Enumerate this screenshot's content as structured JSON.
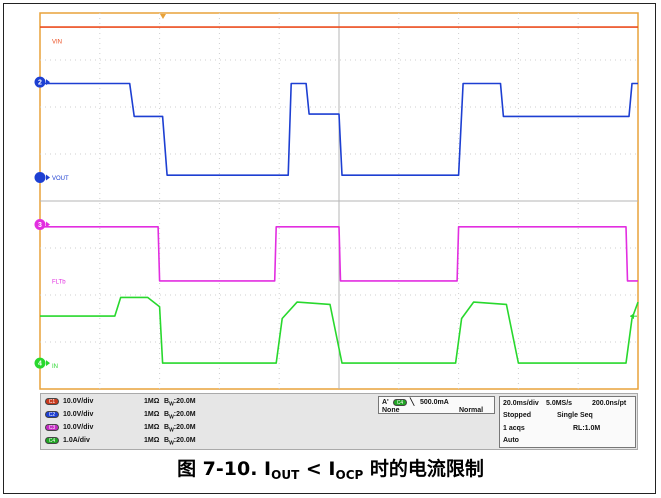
{
  "chart_data": {
    "type": "line",
    "x_unit": "ms",
    "xlim": [
      0,
      200
    ],
    "ylim_divisions": [
      0,
      8
    ],
    "grid": true,
    "channels": [
      {
        "id": "C1",
        "label": "VIN",
        "color": "#ec4d1f",
        "marker": "1"
      },
      {
        "id": "C2",
        "label": "VOUT",
        "color": "#1d3fd2",
        "marker": "2"
      },
      {
        "id": "C3",
        "label": "FLTb",
        "color": "#e22ee0",
        "marker": "3"
      },
      {
        "id": "C4",
        "label": "IN",
        "color": "#28d82d",
        "marker": "4"
      }
    ],
    "series": [
      {
        "name": "VIN",
        "x": [
          0,
          200
        ],
        "y": [
          7.7,
          7.7
        ]
      },
      {
        "name": "VOUT",
        "x": [
          0,
          30,
          31.5,
          41,
          42.5,
          83,
          84,
          89,
          90,
          100,
          101,
          140,
          141.5,
          154,
          155,
          197,
          198,
          200
        ],
        "y": [
          6.5,
          6.5,
          5.8,
          5.8,
          4.55,
          4.55,
          6.5,
          6.5,
          5.85,
          5.85,
          4.55,
          4.55,
          6.5,
          6.5,
          5.8,
          5.8,
          6.5,
          6.5
        ]
      },
      {
        "name": "FLTb",
        "x": [
          0,
          39.5,
          40,
          78.5,
          79,
          100,
          100.5,
          139.5,
          140,
          196,
          196.5,
          200
        ],
        "y": [
          3.45,
          3.45,
          2.3,
          2.3,
          3.45,
          3.45,
          2.3,
          2.3,
          3.45,
          3.45,
          2.3,
          2.3
        ]
      },
      {
        "name": "IN",
        "x": [
          0,
          25,
          27,
          36,
          40,
          41,
          79,
          81,
          86,
          97,
          101,
          103,
          139,
          141,
          145,
          156,
          160,
          161,
          196,
          198,
          200
        ],
        "y": [
          1.55,
          1.55,
          1.95,
          1.95,
          1.75,
          0.55,
          0.55,
          1.5,
          1.85,
          1.8,
          0.55,
          0.55,
          0.55,
          1.5,
          1.85,
          1.8,
          0.55,
          0.55,
          0.55,
          1.5,
          1.85
        ]
      }
    ]
  },
  "status_bar": {
    "channels": [
      {
        "badge": "C1",
        "scale": "10.0V/div",
        "imp": "1MΩ",
        "bw": "B",
        "bw_sub": "W",
        "bw_val": ":20.0M",
        "color": "#c8381c"
      },
      {
        "badge": "C2",
        "scale": "10.0V/div",
        "imp": "1MΩ",
        "bw": "B",
        "bw_sub": "W",
        "bw_val": ":20.0M",
        "color": "#1d3fd2"
      },
      {
        "badge": "C3",
        "scale": "10.0V/div",
        "imp": "1MΩ",
        "bw": "B",
        "bw_sub": "W",
        "bw_val": ":20.0M",
        "color": "#c42bc3"
      },
      {
        "badge": "C4",
        "scale": "1.0A/div",
        "imp": "1MΩ",
        "bw": "B",
        "bw_sub": "W",
        "bw_val": ":20.0M",
        "color": "#21a525"
      }
    ],
    "trigger": {
      "mode": "A'",
      "source": "C4",
      "slope": "╲",
      "level": "500.0mA",
      "coupling": "None",
      "type": "Normal"
    },
    "acquisition": {
      "timebase": "20.0ms/div",
      "sample_rate": "5.0MS/s",
      "resolution": "200.0ns/pt",
      "state": "Stopped",
      "seq": "Single Seq",
      "acqs": "1 acqs",
      "record": "RL:1.0M",
      "mode": "Auto"
    }
  },
  "caption": {
    "prefix": "图 7-10. I",
    "sub1": "OUT",
    "mid": " < I",
    "sub2": "OCP",
    "suffix": " 时的电流限制"
  }
}
